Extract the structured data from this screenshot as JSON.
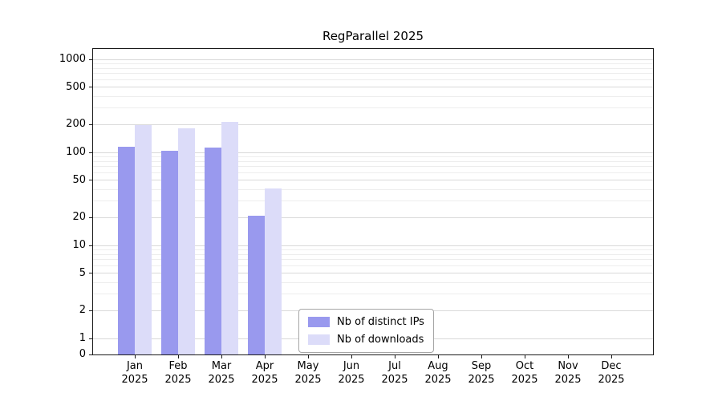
{
  "chart_data": {
    "type": "bar",
    "title": "RegParallel 2025",
    "categories": [
      "Jan 2025",
      "Feb 2025",
      "Mar 2025",
      "Apr 2025",
      "May 2025",
      "Jun 2025",
      "Jul 2025",
      "Aug 2025",
      "Sep 2025",
      "Oct 2025",
      "Nov 2025",
      "Dec 2025"
    ],
    "series": [
      {
        "name": "Nb of distinct IPs",
        "color": "#9999ee",
        "values": [
          115,
          105,
          112,
          21,
          0,
          0,
          0,
          0,
          0,
          0,
          0,
          0
        ]
      },
      {
        "name": "Nb of downloads",
        "color": "#dcdcf9",
        "values": [
          196,
          183,
          213,
          41,
          0,
          0,
          0,
          0,
          0,
          0,
          0,
          0
        ]
      }
    ],
    "y_ticks": [
      1000,
      500,
      200,
      100,
      50,
      20,
      10,
      5,
      2,
      1,
      0
    ],
    "y_scale": "symlog",
    "ylim": [
      0,
      1300
    ],
    "grid": true,
    "legend_position": "bottom-center"
  }
}
